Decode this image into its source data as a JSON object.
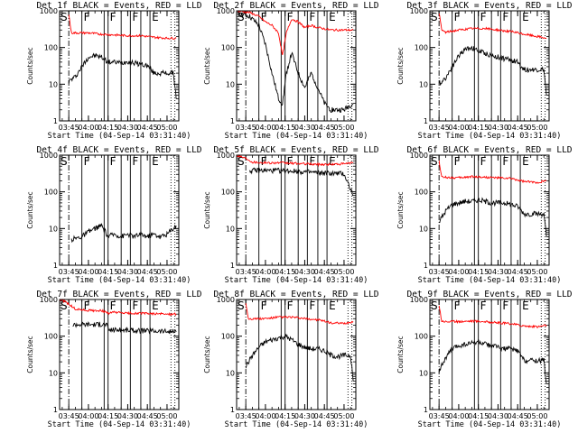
{
  "colors": {
    "events": "#000000",
    "lld": "#ff0000",
    "background": "#ffffff"
  },
  "chart_data": [
    {
      "type": "line",
      "title": "Det 1f BLACK = Events, RED = LLD",
      "xlabel": "Start Time (04-Sep-14 03:31:40)",
      "ylabel": "Counts/sec",
      "xlim": [
        "03:38",
        "05:09"
      ],
      "ylim": [
        1,
        1000
      ],
      "yscale": "log",
      "x_ticks": [
        "03:45",
        "04:00",
        "04:15",
        "04:30",
        "04:45",
        "05:00"
      ],
      "y_ticks": [
        "1",
        "10",
        "100",
        "1000"
      ],
      "interval_labels": [
        "S",
        "F",
        "F",
        "F",
        "E"
      ],
      "vlines_solid": [
        "03:55",
        "04:12",
        "04:15",
        "04:25",
        "04:32",
        "04:40",
        "04:47"
      ],
      "vlines_dotted": [
        "05:03",
        "05:06"
      ],
      "vline_dashdot": "03:45",
      "series": [
        {
          "name": "Events",
          "color": "#000000",
          "x": [
            "03:45",
            "03:50",
            "03:55",
            "04:00",
            "04:05",
            "04:10",
            "04:15",
            "04:20",
            "04:25",
            "04:30",
            "04:35",
            "04:40",
            "04:45",
            "04:50",
            "04:55",
            "05:00",
            "05:05",
            "05:07"
          ],
          "y": [
            12,
            16,
            30,
            55,
            60,
            55,
            40,
            40,
            38,
            42,
            38,
            35,
            32,
            20,
            20,
            20,
            20,
            4
          ]
        },
        {
          "name": "LLD",
          "color": "#ff0000",
          "x": [
            "03:45",
            "03:47",
            "03:50",
            "04:00",
            "04:10",
            "04:20",
            "04:30",
            "04:40",
            "04:50",
            "05:00",
            "05:07"
          ],
          "y": [
            800,
            250,
            250,
            250,
            230,
            220,
            210,
            210,
            190,
            180,
            180
          ]
        }
      ]
    },
    {
      "type": "line",
      "title": "Det 2f BLACK = Events, RED = LLD",
      "xlabel": "Start Time (04-Sep-14 03:31:40)",
      "ylabel": "Counts/sec",
      "xlim": [
        "03:38",
        "05:09"
      ],
      "ylim": [
        1,
        1000
      ],
      "yscale": "log",
      "x_ticks": [
        "03:45",
        "04:00",
        "04:15",
        "04:30",
        "04:45",
        "05:00"
      ],
      "y_ticks": [
        "1",
        "10",
        "100",
        "1000"
      ],
      "interval_labels": [
        "S",
        "F",
        "F",
        "F",
        "E"
      ],
      "vlines_solid": [
        "03:55",
        "04:12",
        "04:15",
        "04:25",
        "04:32",
        "04:40",
        "04:47"
      ],
      "vlines_dotted": [
        "05:03",
        "05:06"
      ],
      "vline_dashdot": "03:45",
      "series": [
        {
          "name": "Events",
          "color": "#000000",
          "x": [
            "03:38",
            "03:48",
            "03:55",
            "04:00",
            "04:05",
            "04:10",
            "04:13",
            "04:16",
            "04:20",
            "04:25",
            "04:30",
            "04:35",
            "04:40",
            "04:45",
            "04:50",
            "05:00",
            "05:07"
          ],
          "y": [
            900,
            700,
            400,
            120,
            20,
            4,
            3,
            20,
            70,
            20,
            8,
            20,
            8,
            3,
            2,
            2,
            3
          ]
        },
        {
          "name": "LLD",
          "color": "#ff0000",
          "x": [
            "03:38",
            "03:48",
            "03:55",
            "04:00",
            "04:05",
            "04:10",
            "04:13",
            "04:16",
            "04:20",
            "04:25",
            "04:30",
            "04:35",
            "04:40",
            "04:50",
            "05:00",
            "05:07"
          ],
          "y": [
            1000,
            900,
            700,
            500,
            400,
            250,
            60,
            250,
            600,
            500,
            350,
            400,
            350,
            300,
            300,
            300
          ]
        }
      ]
    },
    {
      "type": "line",
      "title": "Det 3f BLACK = Events, RED = LLD",
      "xlabel": "Start Time (04-Sep-14 03:31:40)",
      "ylabel": "Counts/sec",
      "xlim": [
        "03:38",
        "05:09"
      ],
      "ylim": [
        1,
        1000
      ],
      "yscale": "log",
      "x_ticks": [
        "03:45",
        "04:00",
        "04:15",
        "04:30",
        "04:45",
        "05:00"
      ],
      "y_ticks": [
        "1",
        "10",
        "100",
        "1000"
      ],
      "interval_labels": [
        "S",
        "F",
        "F",
        "F",
        "E"
      ],
      "vlines_solid": [
        "03:55",
        "04:12",
        "04:15",
        "04:25",
        "04:32",
        "04:40",
        "04:47"
      ],
      "vlines_dotted": [
        "05:03",
        "05:06"
      ],
      "vline_dashdot": "03:45",
      "series": [
        {
          "name": "Events",
          "color": "#000000",
          "x": [
            "03:45",
            "03:50",
            "03:55",
            "04:00",
            "04:05",
            "04:10",
            "04:15",
            "04:20",
            "04:25",
            "04:30",
            "04:35",
            "04:40",
            "04:45",
            "04:50",
            "04:55",
            "05:00",
            "05:05",
            "05:07"
          ],
          "y": [
            10,
            15,
            30,
            60,
            90,
            100,
            80,
            70,
            60,
            55,
            50,
            45,
            40,
            25,
            25,
            25,
            25,
            5
          ]
        },
        {
          "name": "LLD",
          "color": "#ff0000",
          "x": [
            "03:45",
            "03:47",
            "03:50",
            "04:00",
            "04:10",
            "04:20",
            "04:30",
            "04:40",
            "04:50",
            "05:00",
            "05:07"
          ],
          "y": [
            900,
            300,
            260,
            300,
            330,
            330,
            300,
            270,
            230,
            200,
            180
          ]
        }
      ]
    },
    {
      "type": "line",
      "title": "Det 4f BLACK = Events, RED = LLD",
      "xlabel": "Start Time (04-Sep-14 03:31:40)",
      "ylabel": "Counts/sec",
      "xlim": [
        "03:38",
        "05:09"
      ],
      "ylim": [
        1,
        1000
      ],
      "yscale": "log",
      "x_ticks": [
        "03:45",
        "04:00",
        "04:15",
        "04:30",
        "04:45",
        "05:00"
      ],
      "y_ticks": [
        "1",
        "10",
        "100",
        "1000"
      ],
      "interval_labels": [
        "S",
        "F",
        "F",
        "F",
        "E"
      ],
      "vlines_solid": [
        "03:55",
        "04:12",
        "04:15",
        "04:25",
        "04:32",
        "04:40",
        "04:47"
      ],
      "vlines_dotted": [
        "05:03",
        "05:06"
      ],
      "vline_dashdot": "03:45",
      "series": [
        {
          "name": "Events",
          "color": "#000000",
          "x": [
            "03:47",
            "03:55",
            "04:00",
            "04:05",
            "04:10",
            "04:15",
            "04:20",
            "04:25",
            "04:30",
            "04:35",
            "04:40",
            "04:45",
            "04:50",
            "04:55",
            "05:00",
            "05:07"
          ],
          "y": [
            5,
            6,
            8,
            10,
            12,
            6,
            7,
            6,
            7,
            6,
            7,
            6,
            7,
            6,
            7,
            12
          ]
        }
      ]
    },
    {
      "type": "line",
      "title": "Det 5f BLACK = Events, RED = LLD",
      "xlabel": "Start Time (04-Sep-14 03:31:40)",
      "ylabel": "Counts/sec",
      "xlim": [
        "03:38",
        "05:09"
      ],
      "ylim": [
        1,
        1000
      ],
      "yscale": "log",
      "x_ticks": [
        "03:45",
        "04:00",
        "04:15",
        "04:30",
        "04:45",
        "05:00"
      ],
      "y_ticks": [
        "1",
        "10",
        "100",
        "1000"
      ],
      "interval_labels": [
        "S",
        "F",
        "F",
        "F",
        "E"
      ],
      "vlines_solid": [
        "03:55",
        "04:12",
        "04:15",
        "04:25",
        "04:32",
        "04:40",
        "04:47"
      ],
      "vlines_dotted": [
        "05:03",
        "05:06"
      ],
      "vline_dashdot": "03:45",
      "series": [
        {
          "name": "Events",
          "color": "#000000",
          "x": [
            "03:48",
            "03:50",
            "04:00",
            "04:10",
            "04:20",
            "04:30",
            "04:40",
            "04:50",
            "05:00",
            "05:07"
          ],
          "y": [
            380,
            380,
            380,
            380,
            370,
            350,
            330,
            320,
            310,
            80
          ]
        },
        {
          "name": "LLD",
          "color": "#ff0000",
          "x": [
            "03:38",
            "03:42",
            "03:46",
            "03:50",
            "04:00",
            "04:10",
            "04:20",
            "04:30",
            "04:40",
            "04:50",
            "05:00",
            "05:07"
          ],
          "y": [
            1000,
            900,
            800,
            650,
            620,
            620,
            600,
            580,
            560,
            560,
            580,
            620
          ]
        }
      ]
    },
    {
      "type": "line",
      "title": "Det 6f BLACK = Events, RED = LLD",
      "xlabel": "Start Time (04-Sep-14 03:31:40)",
      "ylabel": "Counts/sec",
      "xlim": [
        "03:38",
        "05:09"
      ],
      "ylim": [
        1,
        1000
      ],
      "yscale": "log",
      "x_ticks": [
        "03:45",
        "04:00",
        "04:15",
        "04:30",
        "04:45",
        "05:00"
      ],
      "y_ticks": [
        "1",
        "10",
        "100",
        "1000"
      ],
      "interval_labels": [
        "S",
        "F",
        "F",
        "F",
        "E"
      ],
      "vlines_solid": [
        "03:55",
        "04:12",
        "04:15",
        "04:25",
        "04:32",
        "04:40",
        "04:47"
      ],
      "vlines_dotted": [
        "05:03",
        "05:06"
      ],
      "vline_dashdot": "03:45",
      "series": [
        {
          "name": "Events",
          "color": "#000000",
          "x": [
            "03:45",
            "03:50",
            "03:55",
            "04:00",
            "04:05",
            "04:10",
            "04:15",
            "04:20",
            "04:25",
            "04:30",
            "04:35",
            "04:40",
            "04:45",
            "04:50",
            "04:55",
            "05:00",
            "05:05",
            "05:07"
          ],
          "y": [
            15,
            30,
            45,
            50,
            55,
            55,
            60,
            55,
            50,
            50,
            50,
            45,
            40,
            25,
            25,
            25,
            25,
            6
          ]
        },
        {
          "name": "LLD",
          "color": "#ff0000",
          "x": [
            "03:45",
            "03:47",
            "03:50",
            "04:00",
            "04:10",
            "04:20",
            "04:30",
            "04:40",
            "04:50",
            "05:00",
            "05:07"
          ],
          "y": [
            700,
            250,
            250,
            240,
            260,
            250,
            240,
            230,
            190,
            180,
            200
          ]
        }
      ]
    },
    {
      "type": "line",
      "title": "Det 7f BLACK = Events, RED = LLD",
      "xlabel": "Start Time (04-Sep-14 03:31:40)",
      "ylabel": "Counts/sec",
      "xlim": [
        "03:38",
        "05:09"
      ],
      "ylim": [
        1,
        1000
      ],
      "yscale": "log",
      "x_ticks": [
        "03:45",
        "04:00",
        "04:15",
        "04:30",
        "04:45",
        "05:00"
      ],
      "y_ticks": [
        "1",
        "10",
        "100",
        "1000"
      ],
      "interval_labels": [
        "S",
        "F",
        "F",
        "F",
        "E"
      ],
      "vlines_solid": [
        "03:55",
        "04:12",
        "04:15",
        "04:25",
        "04:32",
        "04:40",
        "04:47"
      ],
      "vlines_dotted": [
        "05:03",
        "05:06"
      ],
      "vline_dashdot": "03:45",
      "series": [
        {
          "name": "Events",
          "color": "#000000",
          "x": [
            "03:48",
            "03:50",
            "04:00",
            "04:10",
            "04:14",
            "04:15",
            "04:20",
            "04:30",
            "04:40",
            "04:50",
            "05:00",
            "05:07"
          ],
          "y": [
            200,
            210,
            210,
            210,
            210,
            150,
            150,
            145,
            140,
            140,
            135,
            130
          ]
        },
        {
          "name": "LLD",
          "color": "#ff0000",
          "x": [
            "03:38",
            "03:42",
            "03:46",
            "03:50",
            "04:00",
            "04:10",
            "04:15",
            "04:20",
            "04:30",
            "04:40",
            "04:50",
            "05:00",
            "05:07"
          ],
          "y": [
            1000,
            900,
            700,
            550,
            500,
            500,
            420,
            450,
            420,
            420,
            410,
            400,
            400
          ]
        }
      ]
    },
    {
      "type": "line",
      "title": "Det 8f BLACK = Events, RED = LLD",
      "xlabel": "Start Time (04-Sep-14 03:31:40)",
      "ylabel": "Counts/sec",
      "xlim": [
        "03:38",
        "05:09"
      ],
      "ylim": [
        1,
        1000
      ],
      "yscale": "log",
      "x_ticks": [
        "03:45",
        "04:00",
        "04:15",
        "04:30",
        "04:45",
        "05:00"
      ],
      "y_ticks": [
        "1",
        "10",
        "100",
        "1000"
      ],
      "interval_labels": [
        "S",
        "F",
        "F",
        "F",
        "E"
      ],
      "vlines_solid": [
        "03:55",
        "04:12",
        "04:15",
        "04:25",
        "04:32",
        "04:40",
        "04:47"
      ],
      "vlines_dotted": [
        "05:03",
        "05:06"
      ],
      "vline_dashdot": "03:45",
      "series": [
        {
          "name": "Events",
          "color": "#000000",
          "x": [
            "03:45",
            "03:50",
            "03:55",
            "04:00",
            "04:05",
            "04:10",
            "04:15",
            "04:20",
            "04:25",
            "04:30",
            "04:35",
            "04:40",
            "04:45",
            "04:50",
            "04:55",
            "05:00",
            "05:05",
            "05:07"
          ],
          "y": [
            15,
            30,
            50,
            70,
            80,
            90,
            100,
            80,
            60,
            50,
            45,
            45,
            40,
            30,
            28,
            30,
            30,
            6
          ]
        },
        {
          "name": "LLD",
          "color": "#ff0000",
          "x": [
            "03:45",
            "03:47",
            "03:50",
            "04:00",
            "04:10",
            "04:20",
            "04:30",
            "04:40",
            "04:50",
            "05:00",
            "05:07"
          ],
          "y": [
            800,
            300,
            300,
            300,
            330,
            330,
            300,
            280,
            230,
            220,
            250
          ]
        }
      ]
    },
    {
      "type": "line",
      "title": "Det 9f BLACK = Events, RED = LLD",
      "xlabel": "Start Time (04-Sep-14 03:31:40)",
      "ylabel": "Counts/sec",
      "xlim": [
        "03:38",
        "05:09"
      ],
      "ylim": [
        1,
        1000
      ],
      "yscale": "log",
      "x_ticks": [
        "03:45",
        "04:00",
        "04:15",
        "04:30",
        "04:45",
        "05:00"
      ],
      "y_ticks": [
        "1",
        "10",
        "100",
        "1000"
      ],
      "interval_labels": [
        "S",
        "F",
        "F",
        "F",
        "E"
      ],
      "vlines_solid": [
        "03:55",
        "04:12",
        "04:15",
        "04:25",
        "04:32",
        "04:40",
        "04:47"
      ],
      "vlines_dotted": [
        "05:03",
        "05:06"
      ],
      "vline_dashdot": "03:45",
      "series": [
        {
          "name": "Events",
          "color": "#000000",
          "x": [
            "03:45",
            "03:50",
            "03:55",
            "04:00",
            "04:05",
            "04:10",
            "04:15",
            "04:20",
            "04:25",
            "04:30",
            "04:35",
            "04:40",
            "04:45",
            "04:50",
            "04:55",
            "05:00",
            "05:05",
            "05:07"
          ],
          "y": [
            12,
            25,
            45,
            55,
            60,
            65,
            70,
            60,
            55,
            50,
            45,
            45,
            40,
            22,
            22,
            22,
            22,
            5
          ]
        },
        {
          "name": "LLD",
          "color": "#ff0000",
          "x": [
            "03:45",
            "03:47",
            "03:50",
            "04:00",
            "04:10",
            "04:20",
            "04:30",
            "04:40",
            "04:50",
            "05:00",
            "05:07"
          ],
          "y": [
            700,
            260,
            250,
            250,
            260,
            250,
            230,
            220,
            190,
            180,
            200
          ]
        }
      ]
    }
  ]
}
